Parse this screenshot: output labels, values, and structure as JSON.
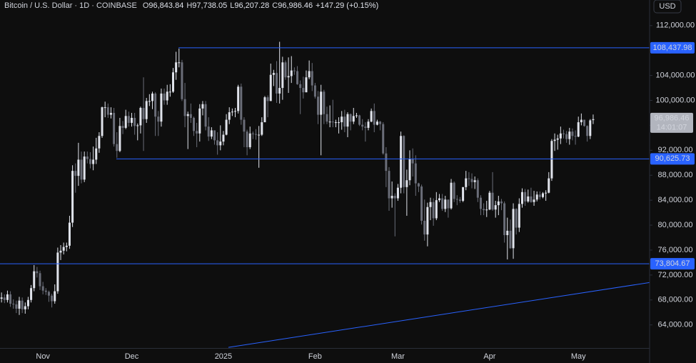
{
  "chart_data": {
    "type": "candlestick",
    "header": {
      "symbol": "Bitcoin / U.S. Dollar · 1D · COINBASE",
      "ohlc": [
        {
          "key": "O",
          "value": "96,843.84"
        },
        {
          "key": "H",
          "value": "97,738.05"
        },
        {
          "key": "L",
          "value": "96,207.28"
        },
        {
          "key": "C",
          "value": "96,986.46"
        }
      ],
      "change": "+147.29 (+0.15%)"
    },
    "currency": "USD",
    "up_color": "#e0e3eb",
    "down_color": "#6a6d78",
    "level_color": "#2962ff",
    "grid": false,
    "ylim": [
      60300,
      116100
    ],
    "yticks": [
      {
        "value": 64000,
        "label": "64,000.00"
      },
      {
        "value": 68000,
        "label": "68,000.00"
      },
      {
        "value": 72000,
        "label": "72,000.00"
      },
      {
        "value": 76000,
        "label": "76,000.00"
      },
      {
        "value": 80000,
        "label": "80,000.00"
      },
      {
        "value": 84000,
        "label": "84,000.00"
      },
      {
        "value": 88000,
        "label": "88,000.00"
      },
      {
        "value": 92000,
        "label": "92,000.00"
      },
      {
        "value": 96000,
        "label": "96,000.00"
      },
      {
        "value": 100000,
        "label": "100,000.00"
      },
      {
        "value": 104000,
        "label": "104,000.00"
      },
      {
        "value": 108000,
        "label": "108,000.00"
      },
      {
        "value": 112000,
        "label": "112,000.00"
      }
    ],
    "levels": [
      {
        "value": 108437.98,
        "label": "108,437.98"
      },
      {
        "value": 90625.73,
        "label": "90,625.73"
      },
      {
        "value": 73804.67,
        "label": "73,804.67"
      }
    ],
    "trendline": [
      60400,
      70800
    ],
    "current_price": {
      "value": 96986.46,
      "label": "96,986.46",
      "countdown": "14:01:07"
    },
    "categories": [
      null,
      null,
      null,
      null,
      null,
      null,
      null,
      null,
      null,
      null,
      null,
      null,
      null,
      null,
      null,
      "Nov",
      null,
      null,
      null,
      null,
      null,
      null,
      null,
      null,
      null,
      null,
      null,
      null,
      null,
      null,
      null,
      null,
      null,
      null,
      null,
      null,
      null,
      null,
      null,
      null,
      null,
      null,
      null,
      null,
      null,
      "Dec",
      null,
      null,
      null,
      null,
      null,
      null,
      null,
      null,
      null,
      null,
      null,
      null,
      null,
      null,
      null,
      null,
      null,
      null,
      null,
      null,
      null,
      null,
      null,
      null,
      null,
      null,
      null,
      null,
      null,
      null,
      "2025",
      null,
      null,
      null,
      null,
      null,
      null,
      null,
      null,
      null,
      null,
      null,
      null,
      null,
      null,
      null,
      null,
      null,
      null,
      null,
      null,
      null,
      null,
      null,
      null,
      null,
      null,
      null,
      null,
      null,
      null,
      "Feb",
      null,
      null,
      null,
      null,
      null,
      null,
      null,
      null,
      null,
      null,
      null,
      null,
      null,
      null,
      null,
      null,
      null,
      null,
      null,
      null,
      null,
      null,
      null,
      null,
      null,
      null,
      null,
      "Mar",
      null,
      null,
      null,
      null,
      null,
      null,
      null,
      null,
      null,
      null,
      null,
      null,
      null,
      null,
      null,
      null,
      null,
      null,
      null,
      null,
      null,
      null,
      null,
      null,
      null,
      null,
      null,
      null,
      null,
      null,
      "Apr",
      null,
      null,
      null,
      null,
      null,
      null,
      null,
      null,
      null,
      null,
      null,
      null,
      null,
      null,
      null,
      null,
      null,
      null,
      null,
      null,
      null,
      null,
      null,
      null,
      null,
      null,
      null,
      null,
      null,
      "May",
      null,
      null,
      null,
      null,
      null
    ],
    "open": [
      67600,
      68200,
      68400,
      68000,
      68900,
      67400,
      67300,
      66600,
      67900,
      66500,
      67000,
      68000,
      69900,
      72600,
      72300,
      70200,
      69500,
      69300,
      68700,
      67800,
      69400,
      75600,
      75900,
      76500,
      76700,
      80400,
      88700,
      87900,
      90500,
      87300,
      91000,
      90600,
      89800,
      90500,
      92300,
      94300,
      98900,
      98900,
      97700,
      98000,
      93000,
      91900,
      95900,
      95600,
      97500,
      96400,
      97200,
      95900,
      96000,
      98800,
      97000,
      99900,
      99900,
      101100,
      97400,
      96600,
      101100,
      100000,
      101400,
      101400,
      104500,
      106100,
      106100,
      100200,
      97500,
      97800,
      97200,
      95100,
      94700,
      98700,
      99400,
      95800,
      94200,
      95200,
      93600,
      92800,
      93400,
      94500,
      96900,
      98100,
      98200,
      98300,
      102200,
      96900,
      95000,
      92500,
      94700,
      94600,
      94500,
      94500,
      96500,
      100500,
      99900,
      104100,
      104400,
      101100,
      102000,
      106100,
      103700,
      103900,
      104800,
      104700,
      102600,
      102000,
      101300,
      103700,
      104700,
      102400,
      100600,
      97700,
      101400,
      97800,
      96600,
      96600,
      96500,
      96500,
      96500,
      97400,
      95800,
      97800,
      96600,
      97500,
      97600,
      96100,
      95800,
      95600,
      96600,
      98300,
      96100,
      96600,
      96200,
      91500,
      88700,
      84300,
      84700,
      84300,
      86000,
      94300,
      86100,
      87200,
      90600,
      89900,
      86700,
      86200,
      80700,
      78500,
      82900,
      83700,
      81100,
      84000,
      84300,
      82600,
      84100,
      82700,
      86800,
      84200,
      84100,
      83900,
      86100,
      87500,
      87400,
      86900,
      87200,
      84400,
      82600,
      82400,
      82500,
      85200,
      82500,
      83200,
      83800,
      83500,
      78400,
      79100,
      76300,
      82600,
      79600,
      83400,
      85300,
      83800,
      84600,
      83700,
      84100,
      84900,
      84500,
      85100,
      85200,
      87500,
      93500,
      93700,
      93900,
      94700,
      94600,
      93800,
      95000,
      94300,
      94200,
      96500,
      96900,
      95900,
      94300,
      96843.84
    ],
    "high": [
      69000,
      69200,
      68900,
      69500,
      69400,
      68100,
      67900,
      68500,
      68400,
      67600,
      68500,
      70400,
      73600,
      73300,
      72700,
      70900,
      69900,
      69500,
      69000,
      70500,
      76400,
      76800,
      77200,
      77200,
      81500,
      89600,
      89900,
      93200,
      91800,
      91800,
      91800,
      91700,
      92600,
      94000,
      94900,
      99000,
      99800,
      99500,
      98900,
      98800,
      94900,
      97200,
      96700,
      98500,
      98200,
      98000,
      98000,
      96300,
      99000,
      103700,
      100400,
      101000,
      101400,
      101300,
      98300,
      101900,
      101900,
      102500,
      102600,
      105200,
      107800,
      108300,
      106500,
      102800,
      98200,
      99500,
      97400,
      96400,
      99400,
      99900,
      99900,
      97300,
      95700,
      95200,
      94900,
      96000,
      95100,
      97800,
      98900,
      98700,
      98800,
      102500,
      102700,
      97300,
      95300,
      95800,
      95000,
      95400,
      95900,
      97300,
      100700,
      100800,
      105900,
      104900,
      106300,
      109400,
      107000,
      106400,
      106900,
      107100,
      105300,
      105500,
      103200,
      103800,
      104800,
      106400,
      106000,
      102800,
      101500,
      102500,
      101700,
      99000,
      99200,
      100100,
      96900,
      97300,
      98300,
      98500,
      98100,
      97900,
      98800,
      98000,
      97700,
      97000,
      96500,
      97000,
      98700,
      99500,
      96900,
      96700,
      96500,
      92500,
      89300,
      87000,
      85100,
      86600,
      95000,
      94400,
      88900,
      92000,
      92300,
      91200,
      86800,
      86500,
      84100,
      83600,
      84400,
      84300,
      85300,
      85000,
      85000,
      84700,
      84100,
      87400,
      87000,
      84800,
      84500,
      86100,
      88700,
      88500,
      88300,
      87800,
      87500,
      84800,
      83500,
      83900,
      85500,
      88500,
      83900,
      84700,
      84200,
      83800,
      81200,
      80900,
      83500,
      82700,
      84300,
      85900,
      85800,
      85700,
      86000,
      85500,
      85400,
      85400,
      85300,
      85600,
      88500,
      93800,
      94700,
      94500,
      95800,
      95300,
      95100,
      95600,
      95500,
      95200,
      97400,
      97900,
      96900,
      96000,
      97000,
      97738.05
    ],
    "low": [
      67000,
      67600,
      67500,
      67600,
      66900,
      66600,
      65900,
      65600,
      65900,
      65800,
      66500,
      67600,
      69400,
      71600,
      69600,
      68900,
      68800,
      67700,
      66800,
      67400,
      69000,
      74400,
      75300,
      75800,
      76200,
      79700,
      85200,
      86300,
      86700,
      86900,
      89900,
      89100,
      88800,
      89800,
      91600,
      94000,
      97300,
      97200,
      97100,
      92600,
      90800,
      91700,
      94600,
      95400,
      95800,
      95800,
      94500,
      93600,
      94700,
      91900,
      96400,
      99100,
      98600,
      94300,
      94300,
      95800,
      99300,
      99300,
      100600,
      101200,
      103300,
      105300,
      99900,
      95700,
      92200,
      96400,
      94300,
      92500,
      93400,
      97600,
      95200,
      93500,
      93800,
      92900,
      91300,
      92000,
      92800,
      94400,
      96200,
      97500,
      97300,
      97900,
      96100,
      92500,
      91200,
      92200,
      93800,
      93700,
      89200,
      94300,
      96500,
      97300,
      99900,
      102300,
      99600,
      99500,
      100100,
      103300,
      101200,
      102800,
      104100,
      102500,
      97800,
      100300,
      101300,
      103400,
      101500,
      100300,
      96200,
      91200,
      96200,
      96200,
      95700,
      95700,
      95700,
      94700,
      95300,
      94900,
      94100,
      95200,
      96200,
      97200,
      95900,
      95200,
      93400,
      95200,
      96500,
      94900,
      96000,
      95200,
      91300,
      86100,
      82300,
      82800,
      78200,
      83900,
      85100,
      85100,
      81500,
      86400,
      87800,
      84700,
      85300,
      80100,
      77500,
      76600,
      80800,
      79900,
      80800,
      83700,
      82300,
      82100,
      81200,
      82500,
      83700,
      83200,
      83600,
      83700,
      85600,
      86300,
      85900,
      85800,
      83700,
      81600,
      81600,
      81300,
      82400,
      82300,
      81200,
      81600,
      82400,
      77200,
      74500,
      76200,
      74600,
      78500,
      78900,
      82800,
      83100,
      83600,
      83600,
      83100,
      83800,
      84100,
      84300,
      83900,
      85100,
      87100,
      91900,
      92100,
      93000,
      93900,
      93200,
      92900,
      93600,
      92900,
      94100,
      96000,
      95800,
      93400,
      93800,
      96207.28
    ],
    "close": [
      68200,
      68400,
      68000,
      68900,
      67400,
      67300,
      66600,
      67900,
      66500,
      67000,
      68000,
      69900,
      72600,
      72300,
      70200,
      69500,
      69300,
      68700,
      67800,
      69400,
      75600,
      75900,
      76500,
      76700,
      80400,
      88700,
      87900,
      90500,
      87300,
      91000,
      90600,
      89800,
      90500,
      92300,
      94300,
      98900,
      98900,
      97700,
      98000,
      93000,
      91900,
      95900,
      95600,
      97500,
      96400,
      97200,
      95900,
      96000,
      98800,
      97000,
      99900,
      99900,
      101100,
      97400,
      96600,
      101100,
      100000,
      101400,
      101400,
      104500,
      106100,
      106100,
      100200,
      97500,
      97800,
      97200,
      95100,
      94700,
      98700,
      99400,
      95800,
      94200,
      95200,
      93600,
      92800,
      93400,
      94500,
      96900,
      98100,
      98200,
      98300,
      102200,
      96900,
      95000,
      92500,
      94700,
      94600,
      94500,
      94500,
      96500,
      100500,
      99900,
      104100,
      104400,
      101100,
      102000,
      106100,
      103700,
      103900,
      104800,
      104700,
      102600,
      102000,
      101300,
      103700,
      104700,
      102400,
      100600,
      97700,
      101400,
      97800,
      96600,
      96600,
      96500,
      96500,
      96500,
      97400,
      95800,
      97800,
      96600,
      97500,
      97600,
      96100,
      95800,
      95600,
      96600,
      98300,
      96100,
      96600,
      96200,
      91500,
      88700,
      84300,
      84700,
      84300,
      86000,
      94300,
      86100,
      87200,
      90600,
      89900,
      86700,
      86200,
      80700,
      78500,
      82900,
      83700,
      81100,
      84000,
      84300,
      82600,
      84100,
      82700,
      86800,
      84200,
      84100,
      83900,
      86100,
      87500,
      87400,
      86900,
      87200,
      84400,
      82600,
      82400,
      82500,
      85200,
      82500,
      83200,
      83800,
      83500,
      78400,
      79100,
      76300,
      82600,
      79600,
      83400,
      85300,
      83800,
      84600,
      83700,
      84100,
      84900,
      84500,
      85100,
      85200,
      87500,
      93500,
      93700,
      93900,
      94700,
      94600,
      93800,
      95000,
      94300,
      94200,
      96500,
      96900,
      95900,
      94300,
      96800,
      96986.46
    ]
  }
}
